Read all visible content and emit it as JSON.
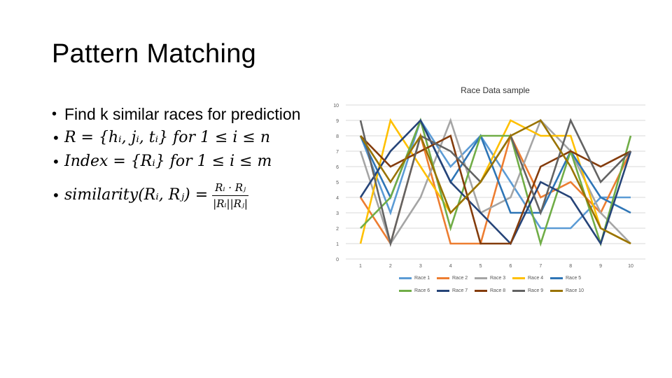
{
  "slide": {
    "title": "Pattern Matching",
    "bullets": [
      "Find k similar races for prediction",
      "R = {hᵢ, jᵢ, tᵢ} for 1 ≤ i ≤ n",
      "Index = {Rᵢ} for 1 ≤ i ≤ m",
      "similarity(Rᵢ, Rⱼ) ="
    ],
    "fraction": {
      "numerator": "Rᵢ · Rⱼ",
      "denominator": "|Rᵢ||Rⱼ|"
    }
  },
  "chart_data": {
    "type": "line",
    "title": "Race Data sample",
    "x": [
      1,
      2,
      3,
      4,
      5,
      6,
      7,
      8,
      9,
      10
    ],
    "ylim": [
      0,
      10
    ],
    "yticks": [
      0,
      1,
      2,
      3,
      4,
      5,
      6,
      7,
      8,
      9,
      10
    ],
    "grid": true,
    "legend_position": "bottom",
    "series": [
      {
        "name": "Race 1",
        "color": "#5b9bd5",
        "values": [
          8,
          3,
          9,
          6,
          8,
          5,
          2,
          2,
          4,
          4
        ]
      },
      {
        "name": "Race 2",
        "color": "#ed7d31",
        "values": [
          4,
          1,
          8,
          1,
          1,
          8,
          4,
          5,
          3,
          7
        ]
      },
      {
        "name": "Race 3",
        "color": "#a5a5a5",
        "values": [
          7,
          1,
          4,
          9,
          3,
          4,
          9,
          7,
          3,
          1
        ]
      },
      {
        "name": "Race 4",
        "color": "#ffc000",
        "values": [
          1,
          9,
          6,
          3,
          5,
          9,
          8,
          8,
          2,
          1
        ]
      },
      {
        "name": "Race 5",
        "color": "#2e75b6",
        "values": [
          8,
          4,
          9,
          5,
          8,
          3,
          3,
          7,
          4,
          3
        ]
      },
      {
        "name": "Race 6",
        "color": "#70ad47",
        "values": [
          2,
          4,
          9,
          2,
          8,
          8,
          1,
          7,
          1,
          8
        ]
      },
      {
        "name": "Race 7",
        "color": "#264478",
        "values": [
          4,
          7,
          9,
          5,
          3,
          1,
          5,
          4,
          1,
          7
        ]
      },
      {
        "name": "Race 8",
        "color": "#843c0c",
        "values": [
          8,
          6,
          7,
          8,
          1,
          1,
          6,
          7,
          6,
          7
        ]
      },
      {
        "name": "Race 9",
        "color": "#636363",
        "values": [
          9,
          1,
          8,
          7,
          5,
          8,
          3,
          9,
          5,
          7
        ]
      },
      {
        "name": "Race 10",
        "color": "#997300",
        "values": [
          8,
          5,
          8,
          3,
          5,
          8,
          9,
          6,
          2,
          1
        ]
      }
    ]
  }
}
